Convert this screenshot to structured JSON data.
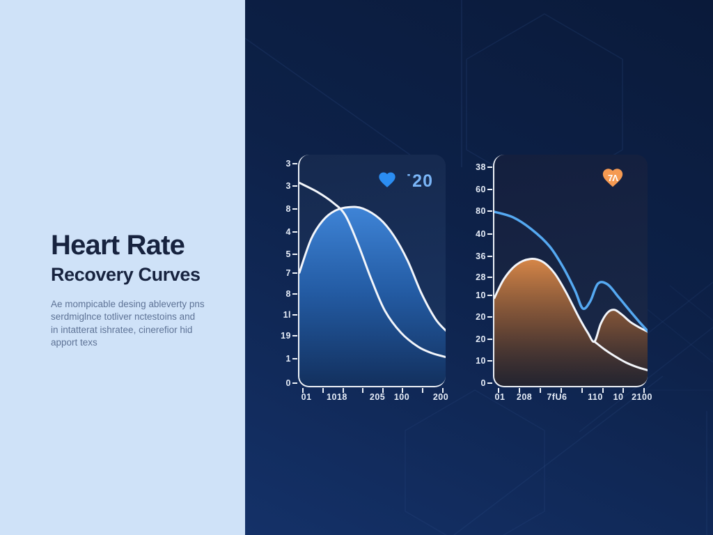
{
  "left_panel": {
    "title_line1": "Heart Rate",
    "title_line2": "Recovery Curves",
    "description_lines": [
      "Ae mompicable desing ableverty pns",
      "serdmiglnce totliver nctestoins and",
      "in intatterat ishratee, cinerefior hid",
      "apport texs"
    ]
  },
  "colors": {
    "left_panel_bg": "#cfe2f8",
    "right_panel_bg_top": "#0a1a3a",
    "right_panel_bg_bottom": "#143168",
    "title_text": "#17233f",
    "paragraph_text": "#5e7396",
    "axis_line": "#eef2f8",
    "tick_label_text": "#e6edf8",
    "white_curve": "#f3f6fb",
    "blue_curve": "#55a9f2"
  },
  "chart_data": [
    {
      "type": "area",
      "title": "",
      "badge": {
        "icon": "heart-icon",
        "heart_color": "#2b8df2",
        "label": "˙20",
        "label_color": "#7ab5f7",
        "glyph": ""
      },
      "y_ticks": [
        {
          "label": "3",
          "pos": 3.9
        },
        {
          "label": "3",
          "pos": 13.5
        },
        {
          "label": "8",
          "pos": 23.3
        },
        {
          "label": "4",
          "pos": 33.2
        },
        {
          "label": "5",
          "pos": 42.8
        },
        {
          "label": "7",
          "pos": 50.9
        },
        {
          "label": "8",
          "pos": 59.9
        },
        {
          "label": "1l",
          "pos": 68.9
        },
        {
          "label": "19",
          "pos": 77.8
        },
        {
          "label": "1",
          "pos": 87.7
        },
        {
          "label": "0",
          "pos": 98.2
        }
      ],
      "x_ticks": [
        {
          "label": "01",
          "pos": 5.7
        },
        {
          "label": "1018",
          "pos": 26.4
        },
        {
          "label": "205",
          "pos": 53.8
        },
        {
          "label": "100",
          "pos": 70.3
        },
        {
          "label": "200",
          "pos": 96.7
        }
      ],
      "x_tick_marks": {
        "count": 8,
        "start": 3,
        "end": 97.5
      },
      "fill_stops": [
        {
          "offset": "0%",
          "color": "#4189de",
          "opacity": "0.95"
        },
        {
          "offset": "45%",
          "color": "#2561ad",
          "opacity": "0.9"
        },
        {
          "offset": "100%",
          "color": "#102c58",
          "opacity": "0.9"
        }
      ],
      "series": [
        {
          "name": "effort-dome",
          "fill": true,
          "stroke": "#f3f6fb",
          "stroke_width": 3,
          "points": [
            [
              0,
              51
            ],
            [
              8,
              36.5
            ],
            [
              16,
              28.5
            ],
            [
              24.5,
              24.2
            ],
            [
              34,
              22.7
            ],
            [
              43.5,
              23.3
            ],
            [
              55,
              27.8
            ],
            [
              64.5,
              35
            ],
            [
              74,
              45.8
            ],
            [
              83.5,
              60
            ],
            [
              93,
              71
            ],
            [
              100,
              76
            ]
          ]
        },
        {
          "name": "recovery-line",
          "fill": false,
          "stroke": "#f3f6fb",
          "stroke_width": 3,
          "points": [
            [
              0,
              12.2
            ],
            [
              12.5,
              16.2
            ],
            [
              23.5,
              21
            ],
            [
              31.5,
              26.3
            ],
            [
              40,
              38.5
            ],
            [
              49.5,
              54.4
            ],
            [
              58.5,
              67.5
            ],
            [
              69.5,
              77
            ],
            [
              81,
              83
            ],
            [
              90.5,
              85.8
            ],
            [
              100,
              87.5
            ]
          ]
        }
      ]
    },
    {
      "type": "area",
      "title": "",
      "badge": {
        "icon": "heart-icon",
        "heart_color": "#f59a52",
        "label": "",
        "label_color": "#ffffff",
        "glyph": "7Λ"
      },
      "y_ticks": [
        {
          "label": "38",
          "pos": 5.4
        },
        {
          "label": "60",
          "pos": 15
        },
        {
          "label": "80",
          "pos": 24.3
        },
        {
          "label": "40",
          "pos": 34.1
        },
        {
          "label": "36",
          "pos": 43.7
        },
        {
          "label": "28",
          "pos": 52.7
        },
        {
          "label": "10",
          "pos": 60.5
        },
        {
          "label": "20",
          "pos": 69.8
        },
        {
          "label": "20",
          "pos": 79.3
        },
        {
          "label": "10",
          "pos": 88.6
        },
        {
          "label": "0",
          "pos": 98.2
        }
      ],
      "x_ticks": [
        {
          "label": "01",
          "pos": 4.5
        },
        {
          "label": "208",
          "pos": 20.3
        },
        {
          "label": "7fU6",
          "pos": 41.4
        },
        {
          "label": "110",
          "pos": 66.2
        },
        {
          "label": "10",
          "pos": 81.1
        },
        {
          "label": "2100",
          "pos": 96.4
        }
      ],
      "x_tick_marks": {
        "count": 8,
        "start": 3,
        "end": 97.5
      },
      "fill_stops": [
        {
          "offset": "0%",
          "color": "#e18c48",
          "opacity": "0.95"
        },
        {
          "offset": "50%",
          "color": "#8a5530",
          "opacity": "0.75"
        },
        {
          "offset": "100%",
          "color": "#221a18",
          "opacity": "0.5"
        }
      ],
      "series": [
        {
          "name": "effort-mounds",
          "fill": true,
          "stroke": "#f3f6fb",
          "stroke_width": 3,
          "points": [
            [
              0,
              62
            ],
            [
              6.3,
              53.7
            ],
            [
              14.4,
              47.6
            ],
            [
              23.4,
              45.1
            ],
            [
              31.5,
              46.3
            ],
            [
              39.2,
              51.2
            ],
            [
              46.8,
              59.5
            ],
            [
              55,
              70.1
            ],
            [
              61,
              77
            ],
            [
              65.3,
              80.8
            ],
            [
              69.4,
              73.2
            ],
            [
              73.9,
              68.3
            ],
            [
              78.4,
              67.1
            ],
            [
              83.3,
              69.2
            ],
            [
              88.7,
              72.3
            ],
            [
              94.6,
              74.7
            ],
            [
              100,
              76.5
            ]
          ]
        },
        {
          "name": "recovery-tail",
          "fill": false,
          "stroke": "#f3f6fb",
          "stroke_width": 3,
          "points": [
            [
              65.3,
              80.8
            ],
            [
              72.1,
              84.3
            ],
            [
              79,
              87.3
            ],
            [
              86,
              89.9
            ],
            [
              93,
              91.8
            ],
            [
              100,
              93.2
            ]
          ]
        },
        {
          "name": "heart-rate-line",
          "fill": false,
          "stroke": "#55a9f2",
          "stroke_width": 3.5,
          "points": [
            [
              0,
              24.7
            ],
            [
              12.2,
              27.1
            ],
            [
              24.3,
              32.3
            ],
            [
              36,
              39.6
            ],
            [
              45,
              48.8
            ],
            [
              52.7,
              58.8
            ],
            [
              57.7,
              66.5
            ],
            [
              62.6,
              63.4
            ],
            [
              67.6,
              55.8
            ],
            [
              73.9,
              56.1
            ],
            [
              81.1,
              61.6
            ],
            [
              88.7,
              67.7
            ],
            [
              94.6,
              72.3
            ],
            [
              100,
              76.2
            ]
          ]
        }
      ]
    }
  ]
}
